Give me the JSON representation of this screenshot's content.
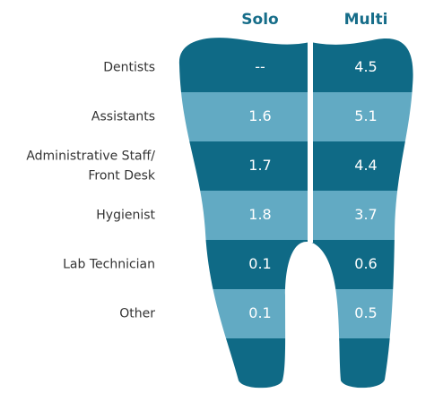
{
  "table": {
    "columns": [
      "Solo",
      "Multi"
    ],
    "rows": [
      {
        "label": [
          "Dentists"
        ],
        "values": [
          "--",
          4.5
        ]
      },
      {
        "label": [
          "Assistants"
        ],
        "values": [
          1.6,
          5.1
        ]
      },
      {
        "label": [
          "Administrative Staff/",
          "Front Desk"
        ],
        "values": [
          1.7,
          4.4
        ]
      },
      {
        "label": [
          "Hygienist"
        ],
        "values": [
          1.8,
          3.7
        ]
      },
      {
        "label": [
          "Lab Technician"
        ],
        "values": [
          0.1,
          0.6
        ]
      },
      {
        "label": [
          "Other"
        ],
        "values": [
          0.1,
          0.5
        ]
      }
    ]
  }
}
